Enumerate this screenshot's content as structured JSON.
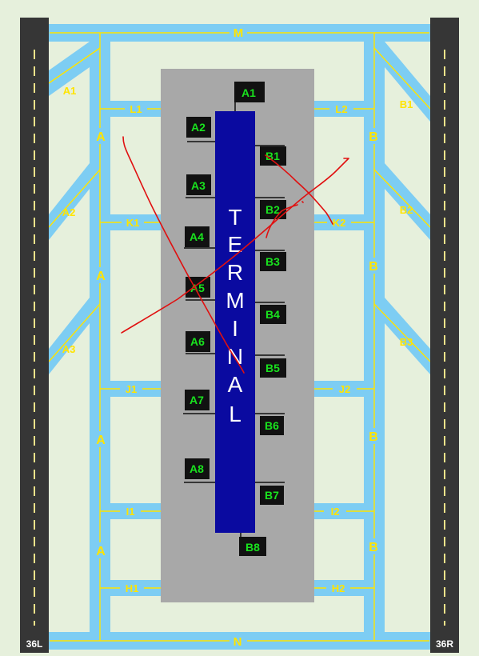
{
  "colors": {
    "background": "#e6f0dc",
    "taxiway": "#7dcdf3",
    "taxiway_centerline": "#ffe400",
    "taxiway_label": "#ffe400",
    "runway": "#363636",
    "runway_centerline": "#f0e38a",
    "apron": "#a8a8a8",
    "terminal": "#0a0aa0",
    "terminal_text": "#ffffff",
    "gate_box": "#111111",
    "gate_label": "#19e21e",
    "runway_label": "#ffffff",
    "scribble": "#e01010"
  },
  "runways": {
    "left": "36L",
    "right": "36R"
  },
  "taxiways": {
    "top": "M",
    "bottom": "N",
    "left_parallel": "A",
    "right_parallel": "B",
    "left_connectors": [
      "L1",
      "K1",
      "J1",
      "I1",
      "H1"
    ],
    "right_connectors": [
      "L2",
      "K2",
      "J2",
      "I2",
      "H2"
    ],
    "left_high_speed": [
      "A1",
      "A2",
      "A3"
    ],
    "right_high_speed": [
      "B1",
      "B2",
      "B3"
    ]
  },
  "terminal": {
    "label": "TERMINAL",
    "letters": [
      "T",
      "E",
      "R",
      "M",
      "I",
      "N",
      "A",
      "L"
    ]
  },
  "gates": {
    "top": "A1",
    "bottom": "B8",
    "a_side": [
      "A2",
      "A3",
      "A4",
      "A5",
      "A6",
      "A7",
      "A8"
    ],
    "b_side": [
      "B1",
      "B2",
      "B3",
      "B4",
      "B5",
      "B6",
      "B7"
    ]
  }
}
